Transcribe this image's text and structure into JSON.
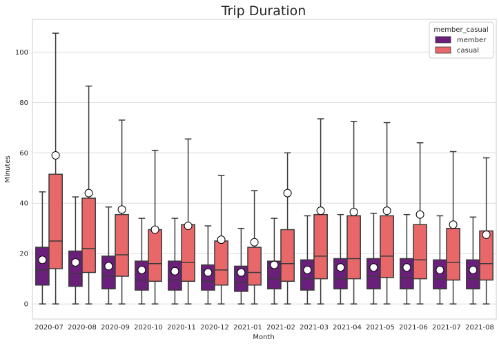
{
  "chart_data": {
    "type": "box",
    "title": "Trip Duration",
    "xlabel": "Month",
    "ylabel": "Minutes",
    "ylim": [
      -6,
      113
    ],
    "yticks": [
      0,
      20,
      40,
      60,
      80,
      100
    ],
    "grid": "horizontal",
    "legend": {
      "title": "member_casual",
      "placement": "top-right"
    },
    "categories": [
      "2020-07",
      "2020-08",
      "2020-09",
      "2020-10",
      "2020-11",
      "2020-12",
      "2021-01",
      "2021-02",
      "2021-03",
      "2021-04",
      "2021-05",
      "2021-06",
      "2021-07",
      "2021-08"
    ],
    "series": [
      {
        "name": "member",
        "color": "#6a1f7b",
        "boxes": [
          {
            "whislo": 0,
            "q1": 7.5,
            "med": 13.5,
            "q3": 22.5,
            "whishi": 44.5,
            "mean": 17.5
          },
          {
            "whislo": 0,
            "q1": 7.0,
            "med": 12.0,
            "q3": 21.0,
            "whishi": 42.5,
            "mean": 16.5
          },
          {
            "whislo": 0,
            "q1": 6.0,
            "med": 11.0,
            "q3": 19.0,
            "whishi": 38.5,
            "mean": 15.0
          },
          {
            "whislo": 0,
            "q1": 5.5,
            "med": 9.5,
            "q3": 17.0,
            "whishi": 34.0,
            "mean": 13.5
          },
          {
            "whislo": 0,
            "q1": 5.5,
            "med": 9.5,
            "q3": 17.0,
            "whishi": 34.0,
            "mean": 13.0
          },
          {
            "whislo": 0,
            "q1": 5.5,
            "med": 9.0,
            "q3": 15.5,
            "whishi": 31.0,
            "mean": 12.5
          },
          {
            "whislo": 0,
            "q1": 5.0,
            "med": 8.5,
            "q3": 15.0,
            "whishi": 30.0,
            "mean": 12.5
          },
          {
            "whislo": 0,
            "q1": 6.0,
            "med": 10.0,
            "q3": 17.0,
            "whishi": 34.0,
            "mean": 15.5
          },
          {
            "whislo": 0,
            "q1": 5.5,
            "med": 10.0,
            "q3": 17.5,
            "whishi": 35.0,
            "mean": 13.5
          },
          {
            "whislo": 0,
            "q1": 6.0,
            "med": 10.0,
            "q3": 18.0,
            "whishi": 35.5,
            "mean": 14.5
          },
          {
            "whislo": 0,
            "q1": 6.0,
            "med": 11.0,
            "q3": 18.0,
            "whishi": 36.0,
            "mean": 14.5
          },
          {
            "whislo": 0,
            "q1": 6.0,
            "med": 10.5,
            "q3": 18.0,
            "whishi": 35.5,
            "mean": 14.5
          },
          {
            "whislo": 0,
            "q1": 6.0,
            "med": 10.0,
            "q3": 17.5,
            "whishi": 35.0,
            "mean": 13.5
          },
          {
            "whislo": 0,
            "q1": 6.0,
            "med": 10.0,
            "q3": 17.5,
            "whishi": 34.5,
            "mean": 13.5
          }
        ]
      },
      {
        "name": "casual",
        "color": "#e8686a",
        "boxes": [
          {
            "whislo": 0,
            "q1": 14.0,
            "med": 25.0,
            "q3": 51.5,
            "whishi": 107.5,
            "mean": 59.0
          },
          {
            "whislo": 0,
            "q1": 12.5,
            "med": 22.0,
            "q3": 42.0,
            "whishi": 86.5,
            "mean": 44.0
          },
          {
            "whislo": 0,
            "q1": 11.0,
            "med": 19.5,
            "q3": 35.5,
            "whishi": 73.0,
            "mean": 37.5
          },
          {
            "whislo": 0,
            "q1": 9.0,
            "med": 16.0,
            "q3": 29.5,
            "whishi": 61.0,
            "mean": 29.5
          },
          {
            "whislo": 0,
            "q1": 9.0,
            "med": 16.5,
            "q3": 31.5,
            "whishi": 65.5,
            "mean": 31.0
          },
          {
            "whislo": 0,
            "q1": 7.5,
            "med": 13.5,
            "q3": 25.0,
            "whishi": 51.0,
            "mean": 25.5
          },
          {
            "whislo": 0,
            "q1": 7.5,
            "med": 12.5,
            "q3": 22.5,
            "whishi": 45.0,
            "mean": 24.5
          },
          {
            "whislo": 0,
            "q1": 9.0,
            "med": 16.0,
            "q3": 29.5,
            "whishi": 60.0,
            "mean": 44.0
          },
          {
            "whislo": 0,
            "q1": 10.0,
            "med": 19.0,
            "q3": 35.5,
            "whishi": 73.5,
            "mean": 37.0
          },
          {
            "whislo": 0,
            "q1": 10.0,
            "med": 18.0,
            "q3": 35.0,
            "whishi": 72.5,
            "mean": 36.5
          },
          {
            "whislo": 0,
            "q1": 10.5,
            "med": 19.0,
            "q3": 35.0,
            "whishi": 72.0,
            "mean": 37.0
          },
          {
            "whislo": 0,
            "q1": 10.0,
            "med": 17.5,
            "q3": 31.5,
            "whishi": 64.0,
            "mean": 35.5
          },
          {
            "whislo": 0,
            "q1": 9.5,
            "med": 16.5,
            "q3": 30.0,
            "whishi": 60.5,
            "mean": 31.5
          },
          {
            "whislo": 0,
            "q1": 9.5,
            "med": 16.0,
            "q3": 29.0,
            "whishi": 58.0,
            "mean": 27.5
          }
        ]
      }
    ]
  }
}
